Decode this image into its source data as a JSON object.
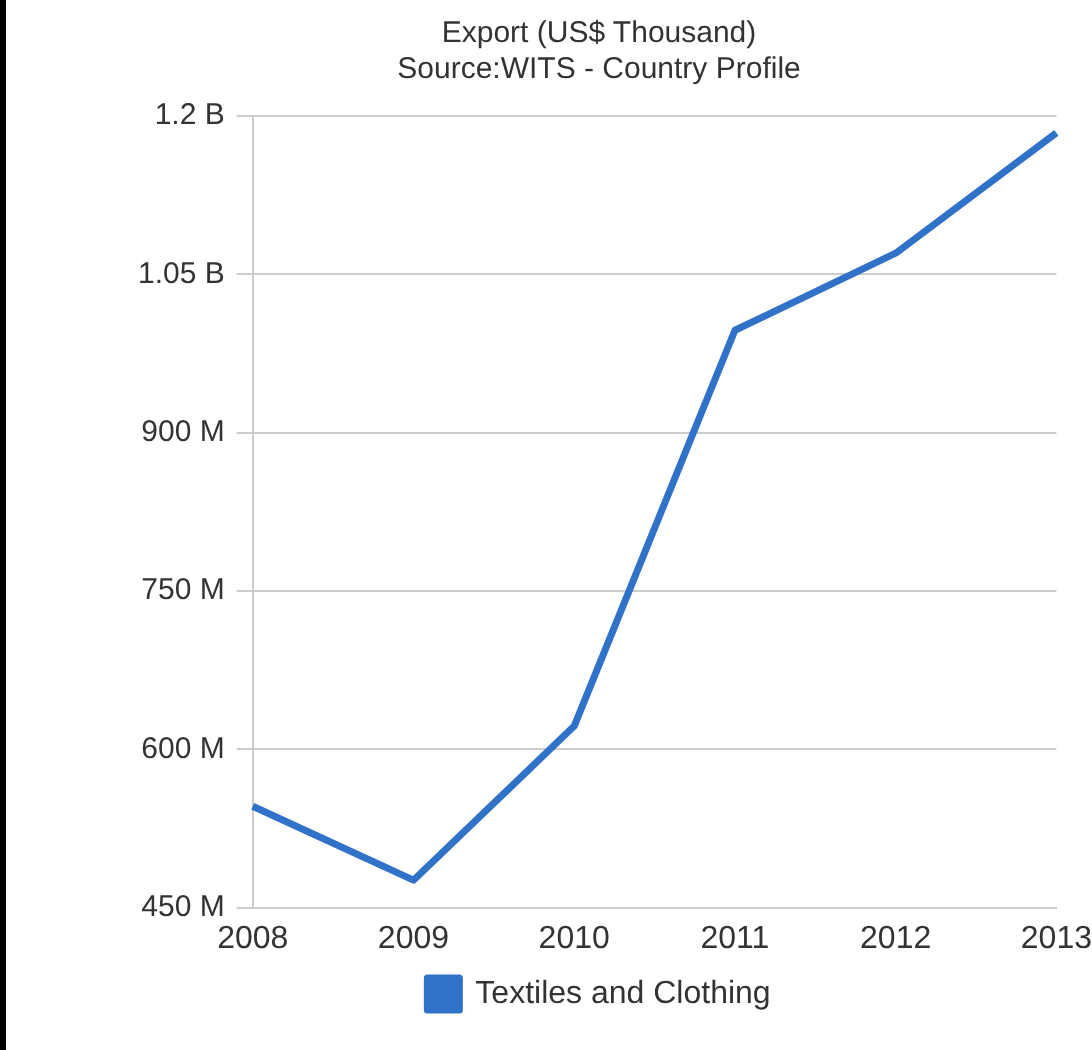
{
  "chart_data": {
    "type": "line",
    "title": "Export (US$ Thousand)",
    "subtitle": "Source:WITS - Country Profile",
    "categories": [
      "2008",
      "2009",
      "2010",
      "2011",
      "2012",
      "2013"
    ],
    "series": [
      {
        "name": "Textiles and Clothing",
        "color": "#2f72c8",
        "values": [
          546000000,
          476000000,
          622000000,
          997000000,
          1070000000,
          1184000000
        ]
      }
    ],
    "ylim": [
      450000000,
      1200000000
    ],
    "yticks": [
      {
        "value": 450000000,
        "label": "450 M"
      },
      {
        "value": 600000000,
        "label": "600 M"
      },
      {
        "value": 750000000,
        "label": "750 M"
      },
      {
        "value": 900000000,
        "label": "900 M"
      },
      {
        "value": 1050000000,
        "label": "1.05 B"
      },
      {
        "value": 1200000000,
        "label": "1.2 B"
      }
    ],
    "grid": "y",
    "legend": "bottom",
    "marker": "none",
    "line_style": "solid"
  }
}
